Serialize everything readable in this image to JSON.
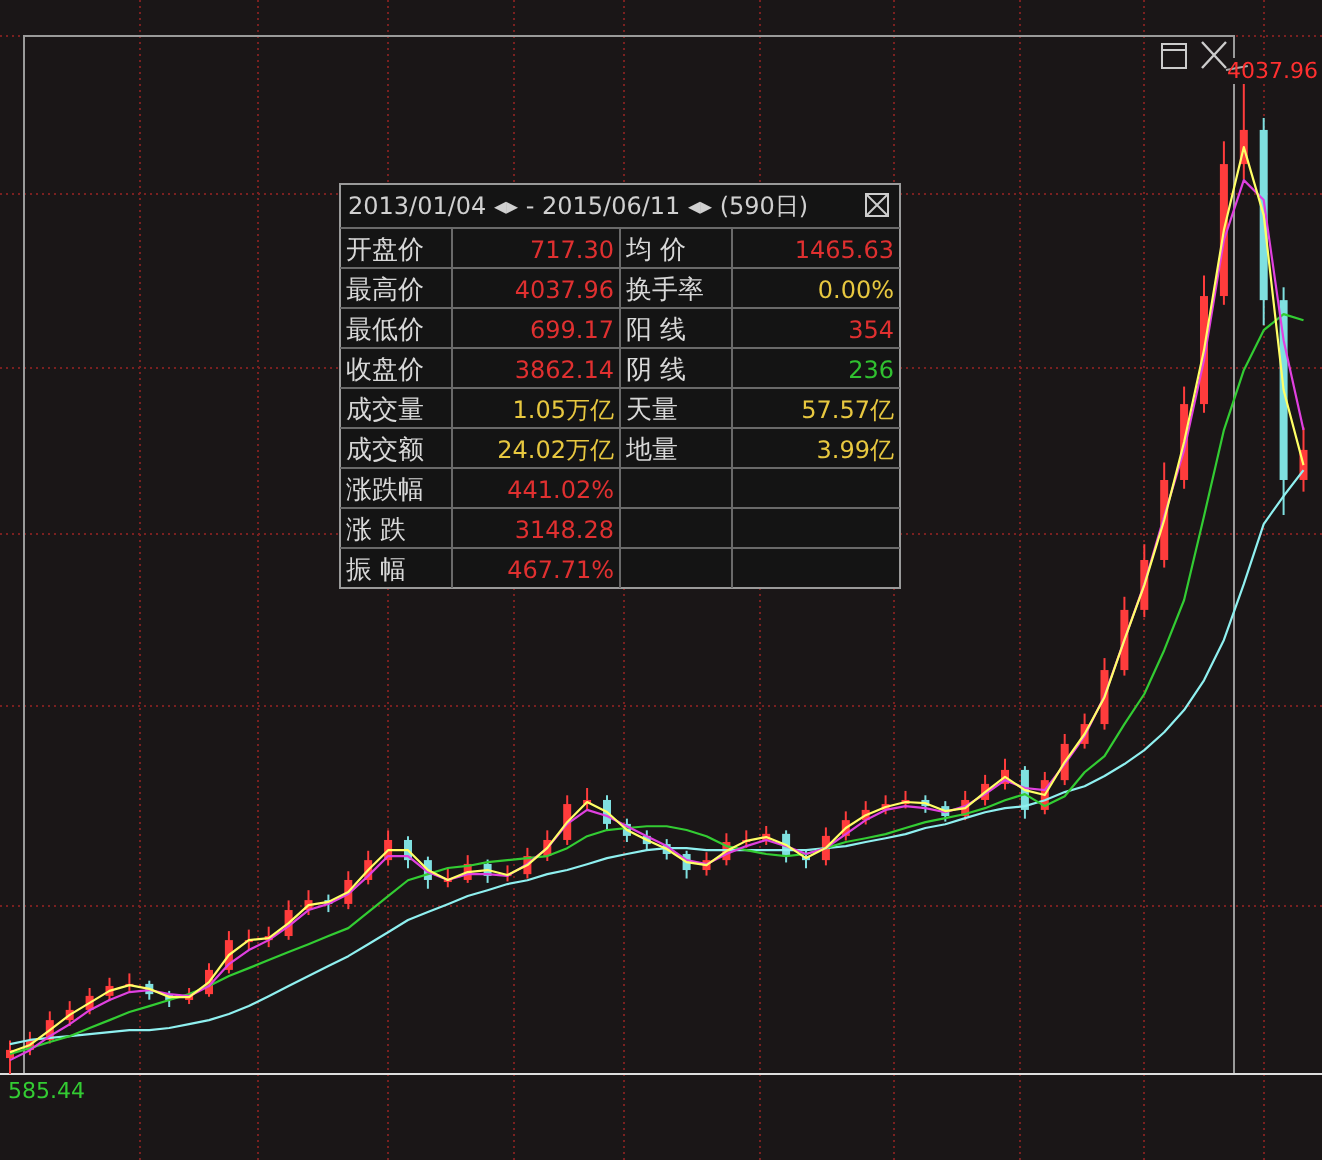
{
  "chart_data": {
    "type": "candlestick",
    "grid": true,
    "categories": [
      null,
      null,
      null,
      null,
      null,
      null,
      null,
      null,
      null,
      null,
      null,
      null,
      null,
      null,
      null,
      null,
      null,
      null,
      null,
      null,
      null,
      null,
      null,
      null,
      null,
      null,
      null,
      null,
      null,
      null,
      null,
      null,
      null,
      null,
      null,
      null,
      null,
      null,
      null,
      null,
      null,
      null,
      null,
      null,
      null,
      null,
      null,
      null,
      null,
      null,
      null,
      null,
      null,
      null,
      null,
      null,
      null,
      null,
      null,
      null,
      null,
      null,
      null,
      null,
      null,
      null
    ],
    "ohlc": [
      [
        640,
        700,
        585.44,
        668
      ],
      [
        668,
        730,
        650,
        702
      ],
      [
        702,
        800,
        690,
        770
      ],
      [
        770,
        835,
        750,
        805
      ],
      [
        805,
        880,
        790,
        853
      ],
      [
        853,
        915,
        835,
        887
      ],
      [
        887,
        930,
        870,
        894
      ],
      [
        894,
        905,
        840,
        859
      ],
      [
        859,
        870,
        815,
        839
      ],
      [
        839,
        880,
        825,
        859
      ],
      [
        859,
        965,
        850,
        942
      ],
      [
        942,
        1075,
        930,
        1044
      ],
      [
        1044,
        1080,
        1010,
        1044
      ],
      [
        1044,
        1090,
        1020,
        1058
      ],
      [
        1058,
        1180,
        1045,
        1147
      ],
      [
        1147,
        1215,
        1130,
        1181
      ],
      [
        1181,
        1200,
        1140,
        1168
      ],
      [
        1168,
        1280,
        1150,
        1250
      ],
      [
        1250,
        1350,
        1235,
        1318
      ],
      [
        1318,
        1420,
        1300,
        1387
      ],
      [
        1387,
        1400,
        1290,
        1318
      ],
      [
        1318,
        1330,
        1220,
        1250
      ],
      [
        1250,
        1290,
        1225,
        1250
      ],
      [
        1250,
        1335,
        1240,
        1305
      ],
      [
        1305,
        1320,
        1240,
        1264
      ],
      [
        1264,
        1300,
        1245,
        1270
      ],
      [
        1270,
        1360,
        1255,
        1332
      ],
      [
        1332,
        1420,
        1315,
        1387
      ],
      [
        1387,
        1540,
        1370,
        1510
      ],
      [
        1510,
        1565,
        1490,
        1524
      ],
      [
        1524,
        1540,
        1420,
        1442
      ],
      [
        1442,
        1460,
        1380,
        1401
      ],
      [
        1401,
        1420,
        1350,
        1373
      ],
      [
        1373,
        1390,
        1320,
        1339
      ],
      [
        1339,
        1350,
        1255,
        1284
      ],
      [
        1284,
        1345,
        1265,
        1318
      ],
      [
        1318,
        1410,
        1300,
        1380
      ],
      [
        1380,
        1420,
        1360,
        1387
      ],
      [
        1387,
        1435,
        1370,
        1408
      ],
      [
        1408,
        1420,
        1310,
        1332
      ],
      [
        1332,
        1350,
        1290,
        1318
      ],
      [
        1318,
        1430,
        1300,
        1401
      ],
      [
        1401,
        1485,
        1385,
        1455
      ],
      [
        1455,
        1520,
        1440,
        1490
      ],
      [
        1490,
        1540,
        1475,
        1510
      ],
      [
        1510,
        1555,
        1495,
        1524
      ],
      [
        1524,
        1540,
        1480,
        1503
      ],
      [
        1503,
        1520,
        1450,
        1469
      ],
      [
        1469,
        1555,
        1455,
        1524
      ],
      [
        1524,
        1610,
        1505,
        1579
      ],
      [
        1579,
        1665,
        1560,
        1627
      ],
      [
        1627,
        1640,
        1460,
        1490
      ],
      [
        1490,
        1620,
        1475,
        1592
      ],
      [
        1592,
        1750,
        1575,
        1716
      ],
      [
        1716,
        1820,
        1700,
        1784
      ],
      [
        1784,
        2010,
        1765,
        1969
      ],
      [
        1969,
        2220,
        1950,
        2175
      ],
      [
        2175,
        2400,
        2150,
        2346
      ],
      [
        2346,
        2680,
        2320,
        2620
      ],
      [
        2620,
        2940,
        2590,
        2880
      ],
      [
        2880,
        3320,
        2850,
        3250
      ],
      [
        3250,
        3780,
        3220,
        3702
      ],
      [
        3702,
        4037.96,
        3650,
        3819
      ],
      [
        3819,
        3860,
        3150,
        3236
      ],
      [
        3236,
        3280,
        2500,
        2620
      ],
      [
        2620,
        2800,
        2580,
        2723
      ]
    ],
    "colors": [
      "#ff3c3c",
      "#ff3c3c",
      "#ff3c3c",
      "#ff3c3c",
      "#ff3c3c",
      "#ff3c3c",
      "#ff3c3c",
      "#7fe0e0",
      "#7fe0e0",
      "#ff3c3c",
      "#ff3c3c",
      "#ff3c3c",
      "#ff3c3c",
      "#ff3c3c",
      "#ff3c3c",
      "#ff3c3c",
      "#7fe0e0",
      "#ff3c3c",
      "#ff3c3c",
      "#ff3c3c",
      "#7fe0e0",
      "#7fe0e0",
      "#ff3c3c",
      "#ff3c3c",
      "#7fe0e0",
      "#ff3c3c",
      "#ff3c3c",
      "#ff3c3c",
      "#ff3c3c",
      "#ff3c3c",
      "#7fe0e0",
      "#7fe0e0",
      "#7fe0e0",
      "#7fe0e0",
      "#7fe0e0",
      "#ff3c3c",
      "#ff3c3c",
      "#ff3c3c",
      "#ff3c3c",
      "#7fe0e0",
      "#7fe0e0",
      "#ff3c3c",
      "#ff3c3c",
      "#ff3c3c",
      "#ff3c3c",
      "#ff3c3c",
      "#7fe0e0",
      "#7fe0e0",
      "#ff3c3c",
      "#ff3c3c",
      "#ff3c3c",
      "#7fe0e0",
      "#ff3c3c",
      "#ff3c3c",
      "#ff3c3c",
      "#ff3c3c",
      "#ff3c3c",
      "#ff3c3c",
      "#ff3c3c",
      "#ff3c3c",
      "#ff3c3c",
      "#ff3c3c",
      "#ff3c3c",
      "#7fe0e0",
      "#7fe0e0",
      "#ff3c3c"
    ],
    "series": [
      {
        "type": "line",
        "color": "#ffff66",
        "values": [
          660,
          685,
          736,
          788,
          829,
          870,
          890,
          877,
          849,
          849,
          900,
          993,
          1044,
          1051,
          1102,
          1164,
          1175,
          1209,
          1284,
          1352,
          1352,
          1284,
          1250,
          1277,
          1284,
          1267,
          1301,
          1360,
          1448,
          1517,
          1483,
          1421,
          1387,
          1356,
          1311,
          1301,
          1349,
          1384,
          1397,
          1370,
          1325,
          1360,
          1428,
          1472,
          1500,
          1517,
          1513,
          1486,
          1496,
          1551,
          1603,
          1558,
          1541,
          1654,
          1750,
          1876,
          2072,
          2260,
          2483,
          2750,
          3065,
          3476,
          3760,
          3527,
          2928,
          2671
        ]
      },
      {
        "type": "line",
        "color": "#e040e0",
        "values": [
          633,
          667,
          715,
          756,
          804,
          839,
          866,
          873,
          859,
          852,
          887,
          962,
          1010,
          1044,
          1092,
          1147,
          1168,
          1202,
          1264,
          1332,
          1332,
          1277,
          1250,
          1270,
          1270,
          1264,
          1305,
          1359,
          1442,
          1490,
          1469,
          1434,
          1400,
          1366,
          1318,
          1304,
          1339,
          1366,
          1387,
          1366,
          1339,
          1359,
          1407,
          1455,
          1490,
          1503,
          1496,
          1482,
          1503,
          1544,
          1592,
          1565,
          1558,
          1647,
          1743,
          1880,
          2072,
          2263,
          2496,
          2722,
          3031,
          3442,
          3647,
          3579,
          3099,
          2791
        ]
      },
      {
        "type": "line",
        "color": "#33cc33",
        "values": [
          654,
          674,
          695,
          715,
          743,
          770,
          798,
          818,
          839,
          859,
          887,
          921,
          948,
          976,
          1003,
          1030,
          1058,
          1085,
          1140,
          1195,
          1249,
          1270,
          1291,
          1298,
          1311,
          1318,
          1325,
          1332,
          1359,
          1400,
          1421,
          1428,
          1434,
          1434,
          1421,
          1400,
          1366,
          1352,
          1339,
          1332,
          1339,
          1359,
          1380,
          1393,
          1407,
          1428,
          1448,
          1462,
          1476,
          1496,
          1523,
          1544,
          1503,
          1537,
          1619,
          1674,
          1784,
          1887,
          2037,
          2209,
          2496,
          2791,
          2996,
          3133,
          3188,
          3167
        ]
      },
      {
        "type": "line",
        "color": "#8ff0f0",
        "values": [
          688,
          702,
          709,
          715,
          722,
          729,
          736,
          736,
          743,
          756,
          770,
          791,
          818,
          852,
          887,
          921,
          955,
          989,
          1030,
          1071,
          1113,
          1140,
          1167,
          1195,
          1215,
          1236,
          1249,
          1270,
          1284,
          1304,
          1325,
          1339,
          1352,
          1359,
          1359,
          1352,
          1352,
          1352,
          1352,
          1352,
          1352,
          1359,
          1366,
          1380,
          1393,
          1407,
          1428,
          1441,
          1462,
          1482,
          1496,
          1503,
          1523,
          1551,
          1571,
          1606,
          1647,
          1695,
          1756,
          1832,
          1934,
          2072,
          2263,
          2469,
          2565,
          2654
        ]
      }
    ],
    "ref_lines": [
      {
        "axis": "y",
        "value": 585.44,
        "label": "585.44",
        "color": "#dddddd"
      }
    ],
    "annotations": [
      "4037.96",
      "2013/01/04 ◂▸ - 2015/06/11 ◂▸  (590日)",
      "开盘价",
      "717.30",
      "均 价",
      "1465.63",
      "最高价",
      "4037.96",
      "换手率",
      "0.00%",
      "最低价",
      "699.17",
      "阳 线",
      "354",
      "收盘价",
      "3862.14",
      "阴 线",
      "236",
      "成交量",
      "1.05万亿",
      "天量",
      "57.57亿",
      "成交额",
      "24.02万亿",
      "地量",
      "3.99亿",
      "涨跌幅",
      "441.02%",
      "涨 跌",
      "3148.28",
      "振 幅",
      "467.71%"
    ]
  }
}
